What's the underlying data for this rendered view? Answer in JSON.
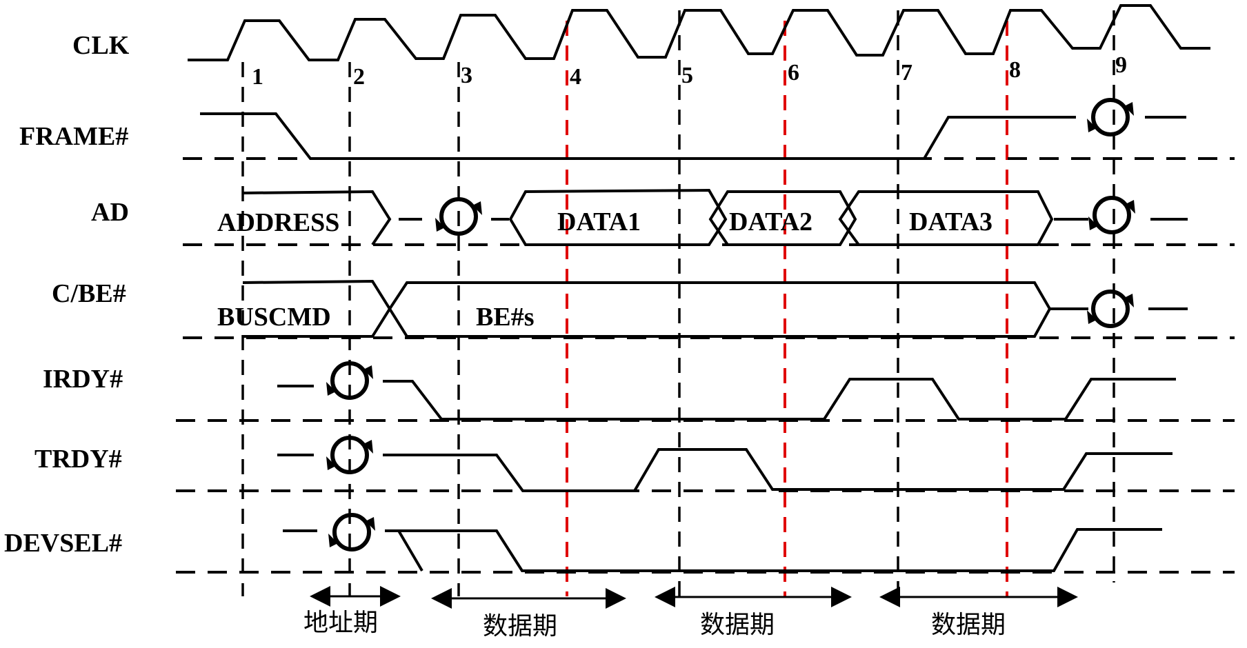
{
  "signals": [
    "CLK",
    "FRAME#",
    "AD",
    "C/BE#",
    "IRDY#",
    "TRDY#",
    "DEVSEL#"
  ],
  "clock_numbers": [
    "1",
    "2",
    "3",
    "4",
    "5",
    "6",
    "7",
    "8",
    "9"
  ],
  "ad_labels": [
    "ADDRESS",
    "DATA1",
    "DATA2",
    "DATA3"
  ],
  "cbe_labels": [
    "BUSCMD",
    "BE#s"
  ],
  "phases": [
    "地址期",
    "数据期",
    "数据期",
    "数据期"
  ],
  "colors": {
    "ink": "#000000",
    "highlight_lines": "#e00000"
  },
  "icons": [
    "turnaround-icon"
  ]
}
